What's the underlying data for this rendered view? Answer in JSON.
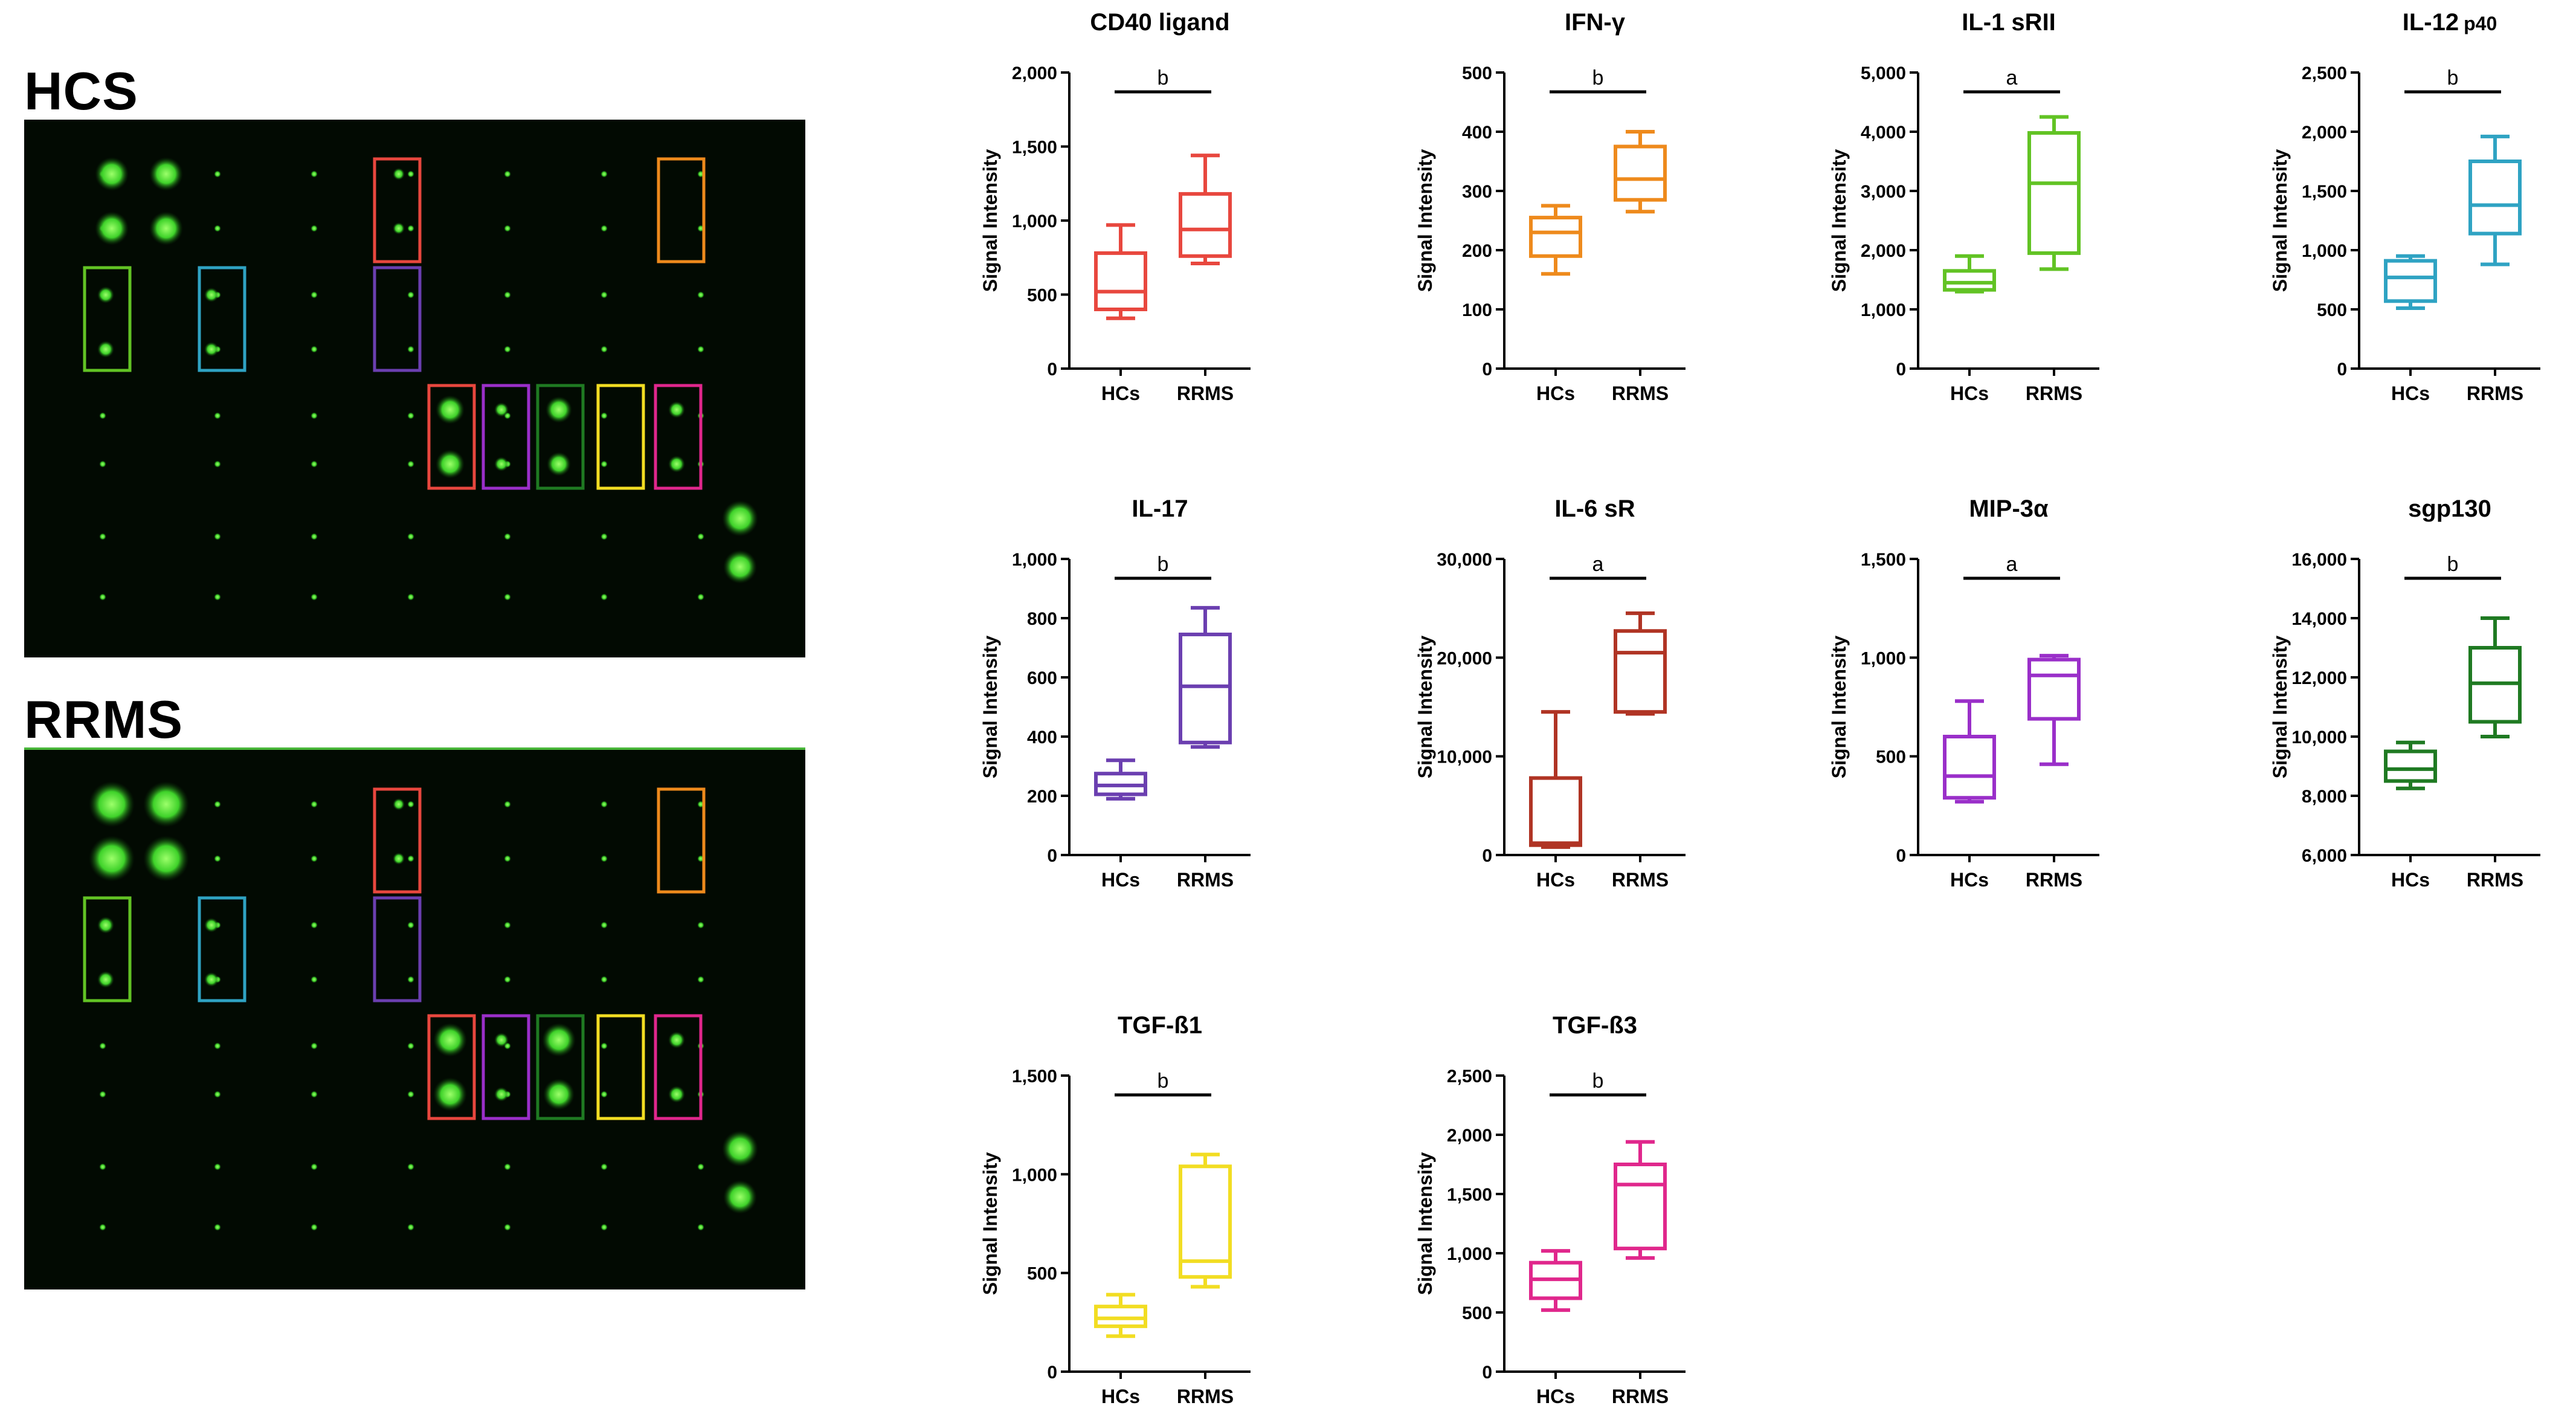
{
  "left_panel": {
    "hcs_label": "HCS",
    "rrms_label": "RRMS"
  },
  "chart_data": [
    {
      "type": "box",
      "title": "CD40 ligand",
      "title_suffix": "",
      "ylabel": "Signal Intensity",
      "ylim": [
        0,
        2000
      ],
      "yticks": [
        0,
        500,
        1000,
        1500,
        2000
      ],
      "yticklabels": [
        "0",
        "500",
        "1,000",
        "1,500",
        "2,000"
      ],
      "categories": [
        "HCs",
        "RRMS"
      ],
      "significance": "b",
      "color": "#e8473e",
      "series": [
        {
          "name": "HCs",
          "min": 340,
          "q1": 400,
          "median": 520,
          "q3": 780,
          "max": 970
        },
        {
          "name": "RRMS",
          "min": 710,
          "q1": 760,
          "median": 940,
          "q3": 1180,
          "max": 1440
        }
      ]
    },
    {
      "type": "box",
      "title": "IFN-γ",
      "title_suffix": "",
      "ylabel": "Signal Intensity",
      "ylim": [
        0,
        500
      ],
      "yticks": [
        0,
        100,
        200,
        300,
        400,
        500
      ],
      "yticklabels": [
        "0",
        "100",
        "200",
        "300",
        "400",
        "500"
      ],
      "categories": [
        "HCs",
        "RRMS"
      ],
      "significance": "b",
      "color": "#ee8a1c",
      "series": [
        {
          "name": "HCs",
          "min": 160,
          "q1": 190,
          "median": 230,
          "q3": 255,
          "max": 275
        },
        {
          "name": "RRMS",
          "min": 265,
          "q1": 285,
          "median": 320,
          "q3": 375,
          "max": 400
        }
      ]
    },
    {
      "type": "box",
      "title": "IL-1 sRII",
      "title_suffix": "",
      "ylabel": "Signal Intensity",
      "ylim": [
        0,
        5000
      ],
      "yticks": [
        0,
        1000,
        2000,
        3000,
        4000,
        5000
      ],
      "yticklabels": [
        "0",
        "1,000",
        "2,000",
        "3,000",
        "4,000",
        "5,000"
      ],
      "categories": [
        "HCs",
        "RRMS"
      ],
      "significance": "a",
      "color": "#62c324",
      "series": [
        {
          "name": "HCs",
          "min": 1300,
          "q1": 1330,
          "median": 1450,
          "q3": 1650,
          "max": 1900
        },
        {
          "name": "RRMS",
          "min": 1680,
          "q1": 1950,
          "median": 3130,
          "q3": 3980,
          "max": 4250
        }
      ]
    },
    {
      "type": "box",
      "title": "IL-12",
      "title_suffix": "p40",
      "ylabel": "Signal Intensity",
      "ylim": [
        0,
        2500
      ],
      "yticks": [
        0,
        500,
        1000,
        1500,
        2000,
        2500
      ],
      "yticklabels": [
        "0",
        "500",
        "1,000",
        "1,500",
        "2,000",
        "2,500"
      ],
      "categories": [
        "HCs",
        "RRMS"
      ],
      "significance": "b",
      "color": "#2fa3c3",
      "series": [
        {
          "name": "HCs",
          "min": 510,
          "q1": 570,
          "median": 770,
          "q3": 910,
          "max": 950
        },
        {
          "name": "RRMS",
          "min": 880,
          "q1": 1140,
          "median": 1380,
          "q3": 1750,
          "max": 1960
        }
      ]
    },
    {
      "type": "box",
      "title": "IL-17",
      "title_suffix": "",
      "ylabel": "Signal Intensity",
      "ylim": [
        0,
        1000
      ],
      "yticks": [
        0,
        200,
        400,
        600,
        800,
        1000
      ],
      "yticklabels": [
        "0",
        "200",
        "400",
        "600",
        "800",
        "1,000"
      ],
      "categories": [
        "HCs",
        "RRMS"
      ],
      "significance": "b",
      "color": "#6b3fb0",
      "series": [
        {
          "name": "HCs",
          "min": 190,
          "q1": 205,
          "median": 235,
          "q3": 275,
          "max": 320
        },
        {
          "name": "RRMS",
          "min": 365,
          "q1": 380,
          "median": 570,
          "q3": 745,
          "max": 835
        }
      ]
    },
    {
      "type": "box",
      "title": "IL-6 sR",
      "title_suffix": "",
      "ylabel": "Signal Intensity",
      "ylim": [
        0,
        30000
      ],
      "yticks": [
        0,
        10000,
        20000,
        30000
      ],
      "yticklabels": [
        "0",
        "10,000",
        "20,000",
        "30,000"
      ],
      "categories": [
        "HCs",
        "RRMS"
      ],
      "significance": "a",
      "color": "#b03424",
      "series": [
        {
          "name": "HCs",
          "min": 800,
          "q1": 1000,
          "median": 1200,
          "q3": 7800,
          "max": 14500
        },
        {
          "name": "RRMS",
          "min": 14300,
          "q1": 14500,
          "median": 20500,
          "q3": 22700,
          "max": 24500
        }
      ]
    },
    {
      "type": "box",
      "title": "MIP-3α",
      "title_suffix": "",
      "ylabel": "Signal Intensity",
      "ylim": [
        0,
        1500
      ],
      "yticks": [
        0,
        500,
        1000,
        1500
      ],
      "yticklabels": [
        "0",
        "500",
        "1,000",
        "1,500"
      ],
      "categories": [
        "HCs",
        "RRMS"
      ],
      "significance": "a",
      "color": "#9a2fc9",
      "series": [
        {
          "name": "HCs",
          "min": 270,
          "q1": 290,
          "median": 400,
          "q3": 600,
          "max": 780
        },
        {
          "name": "RRMS",
          "min": 460,
          "q1": 690,
          "median": 910,
          "q3": 990,
          "max": 1010
        }
      ]
    },
    {
      "type": "box",
      "title": "sgp130",
      "title_suffix": "",
      "ylabel": "Signal Intensity",
      "ylim": [
        6000,
        16000
      ],
      "yticks": [
        6000,
        8000,
        10000,
        12000,
        14000,
        16000
      ],
      "yticklabels": [
        "6,000",
        "8,000",
        "10,000",
        "12,000",
        "14,000",
        "16,000"
      ],
      "categories": [
        "HCs",
        "RRMS"
      ],
      "significance": "b",
      "color": "#1f7a22",
      "series": [
        {
          "name": "HCs",
          "min": 8250,
          "q1": 8500,
          "median": 8900,
          "q3": 9500,
          "max": 9800
        },
        {
          "name": "RRMS",
          "min": 10000,
          "q1": 10500,
          "median": 11800,
          "q3": 13000,
          "max": 14000
        }
      ]
    },
    {
      "type": "box",
      "title": "TGF-ß1",
      "title_suffix": "",
      "ylabel": "Signal Intensity",
      "ylim": [
        0,
        1500
      ],
      "yticks": [
        0,
        500,
        1000,
        1500
      ],
      "yticklabels": [
        "0",
        "500",
        "1,000",
        "1,500"
      ],
      "categories": [
        "HCs",
        "RRMS"
      ],
      "significance": "b",
      "color": "#f2dd22",
      "series": [
        {
          "name": "HCs",
          "min": 180,
          "q1": 230,
          "median": 270,
          "q3": 330,
          "max": 390
        },
        {
          "name": "RRMS",
          "min": 430,
          "q1": 480,
          "median": 560,
          "q3": 1040,
          "max": 1100
        }
      ]
    },
    {
      "type": "box",
      "title": "TGF-ß3",
      "title_suffix": "",
      "ylabel": "Signal Intensity",
      "ylim": [
        0,
        2500
      ],
      "yticks": [
        0,
        500,
        1000,
        1500,
        2000,
        2500
      ],
      "yticklabels": [
        "0",
        "500",
        "1,000",
        "1,500",
        "2,000",
        "2,500"
      ],
      "categories": [
        "HCs",
        "RRMS"
      ],
      "significance": "b",
      "color": "#e0278c",
      "series": [
        {
          "name": "HCs",
          "min": 520,
          "q1": 620,
          "median": 780,
          "q3": 920,
          "max": 1020
        },
        {
          "name": "RRMS",
          "min": 960,
          "q1": 1040,
          "median": 1580,
          "q3": 1750,
          "max": 1940
        }
      ]
    }
  ]
}
